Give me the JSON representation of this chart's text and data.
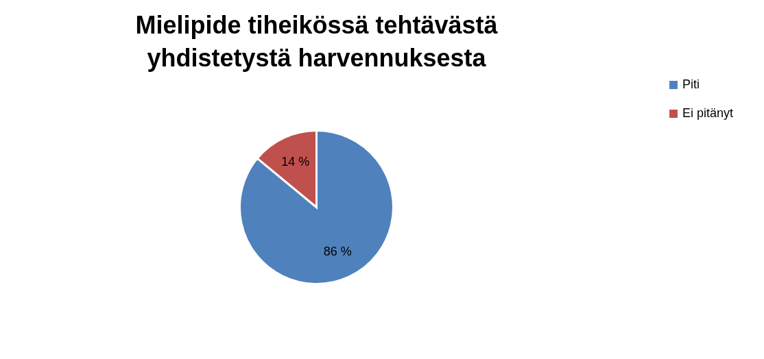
{
  "chart_data": {
    "type": "pie",
    "title": "Mielipide tiheikössä tehtävästä yhdistetystä harvennuksesta",
    "categories": [
      "Piti",
      "Ei pitänyt"
    ],
    "values": [
      86,
      14
    ],
    "colors": [
      "#4f81bd",
      "#c0504d"
    ],
    "value_labels": [
      "86 %",
      "14 %"
    ],
    "legend": "right"
  }
}
